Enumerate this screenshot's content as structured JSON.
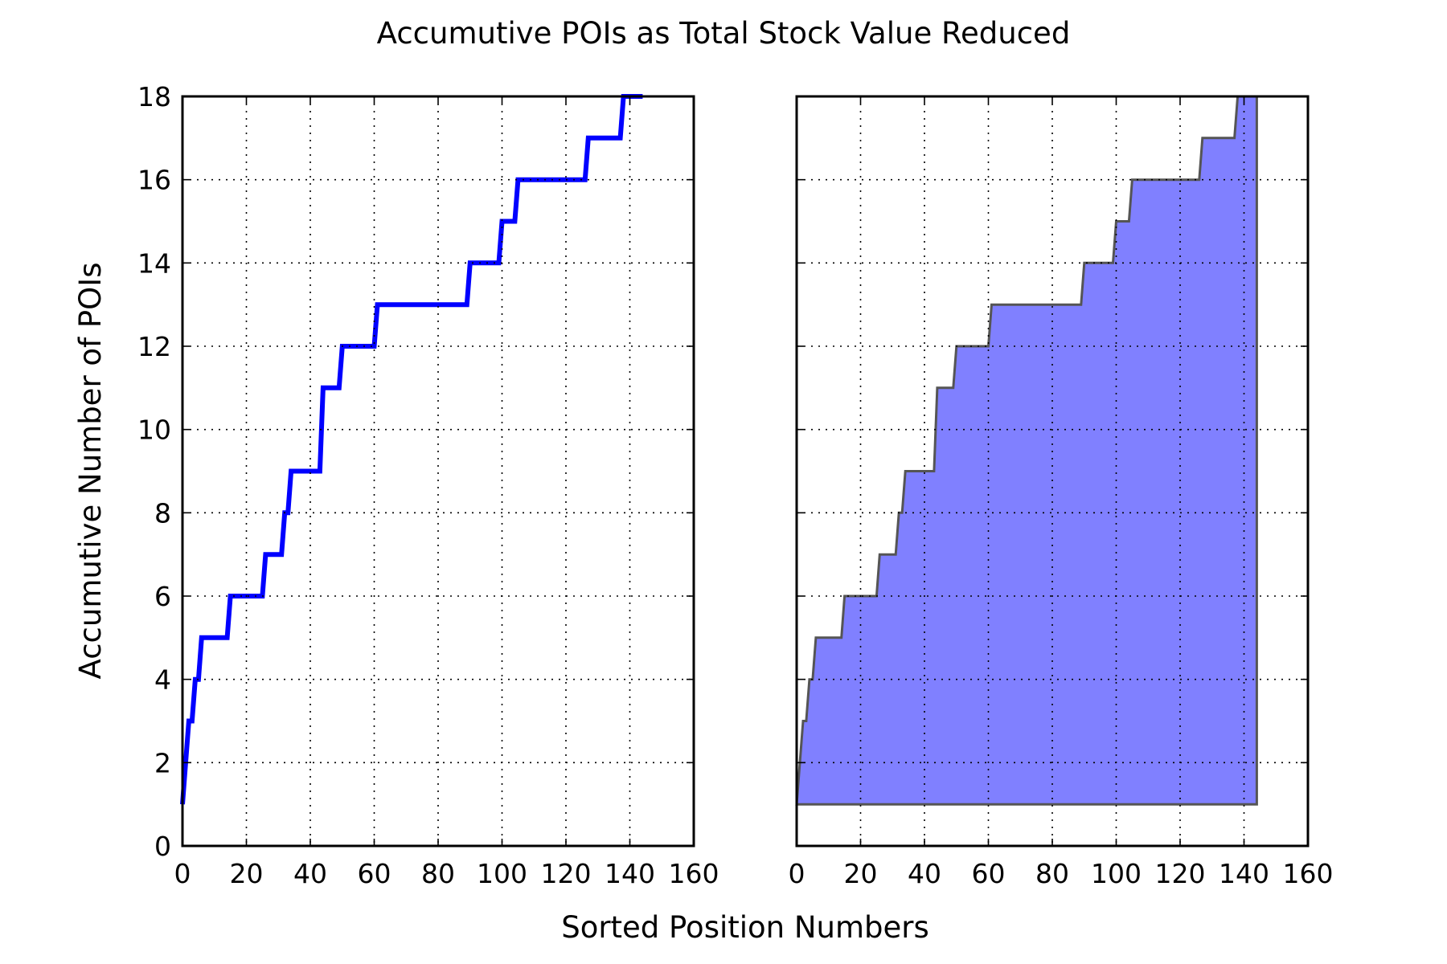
{
  "chart_data": {
    "type": "line",
    "title": "Accumutive POIs as Total Stock Value Reduced",
    "xlabel": "Sorted Position Numbers",
    "ylabel": "Accumutive Number of POIs",
    "xlim": [
      0,
      160
    ],
    "ylim": [
      0,
      18
    ],
    "xticks": [
      "0",
      "20",
      "40",
      "60",
      "80",
      "100",
      "120",
      "140",
      "160"
    ],
    "yticks": [
      "0",
      "2",
      "4",
      "6",
      "8",
      "10",
      "12",
      "14",
      "16",
      "18"
    ],
    "grid": true,
    "colors": {
      "line": "#0000ff",
      "fill": "#8080ff",
      "fill_edge": "#555555"
    },
    "panels": [
      {
        "style": "step-line"
      },
      {
        "style": "filled-area",
        "baseline": 1
      }
    ],
    "series": [
      {
        "x": [
          0,
          2,
          3,
          4,
          5,
          6,
          7,
          14,
          15,
          25,
          26,
          31,
          32,
          33,
          34,
          43,
          44,
          45,
          49,
          50,
          60,
          61,
          89,
          90,
          99,
          100,
          104,
          105,
          126,
          127,
          137,
          138,
          144
        ],
        "y": [
          1,
          3,
          3,
          4,
          4,
          5,
          5,
          5,
          6,
          6,
          7,
          7,
          8,
          8,
          9,
          9,
          11,
          11,
          11,
          12,
          12,
          13,
          13,
          14,
          14,
          15,
          15,
          16,
          16,
          17,
          17,
          18,
          18
        ]
      }
    ]
  }
}
